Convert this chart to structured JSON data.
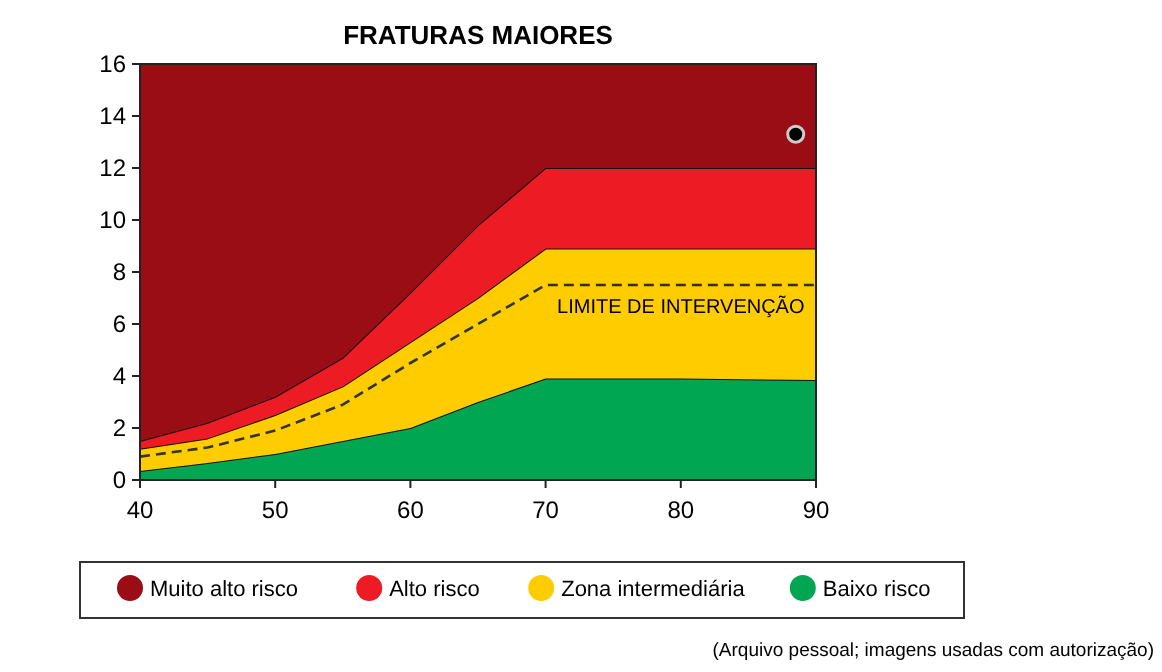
{
  "chart_data": {
    "type": "area",
    "title": "FRATURAS MAIORES",
    "stacked": true,
    "x": [
      40,
      45,
      50,
      55,
      60,
      65,
      70,
      80,
      90
    ],
    "series": [
      {
        "name": "Baixo risco",
        "color": "#00a651",
        "values": [
          0.35,
          0.65,
          1.0,
          1.5,
          2.0,
          3.0,
          3.9,
          3.9,
          3.85
        ]
      },
      {
        "name": "Zona intermediária",
        "color": "#ffcc00",
        "values": [
          0.85,
          0.95,
          1.5,
          2.1,
          3.3,
          4.0,
          5.0,
          5.0,
          5.05
        ]
      },
      {
        "name": "Alto risco",
        "color": "#ed1c24",
        "values": [
          0.3,
          0.6,
          0.7,
          1.1,
          1.9,
          2.8,
          3.1,
          3.1,
          3.1
        ]
      },
      {
        "name": "Muito alto risco",
        "color": "#9b0d14",
        "values": [
          14.5,
          13.8,
          12.8,
          11.3,
          8.8,
          6.2,
          4.0,
          4.0,
          4.0
        ]
      },
      {
        "type": "line",
        "color": "#333333",
        "line_style": "dashed",
        "values": [
          0.9,
          1.25,
          1.9,
          2.9,
          4.5,
          6.0,
          7.5,
          7.5,
          7.5
        ]
      },
      {
        "type": "scatter",
        "color": "#000000",
        "marker": "circle",
        "x": [
          88.5
        ],
        "values": [
          13.3
        ]
      }
    ],
    "xlim": [
      40,
      90
    ],
    "xticks": [
      40,
      50,
      60,
      70,
      80,
      90
    ],
    "ylim": [
      0,
      16
    ],
    "yticks": [
      0,
      2,
      4,
      6,
      8,
      10,
      12,
      14,
      16
    ],
    "legend": "bottom",
    "grid": false,
    "annotations": [
      {
        "text": "LIMITE DE INTERVENÇÃO",
        "x": 80,
        "y": 7.5
      },
      "(Arquivo pessoal; imagens usadas com autorização)"
    ]
  }
}
